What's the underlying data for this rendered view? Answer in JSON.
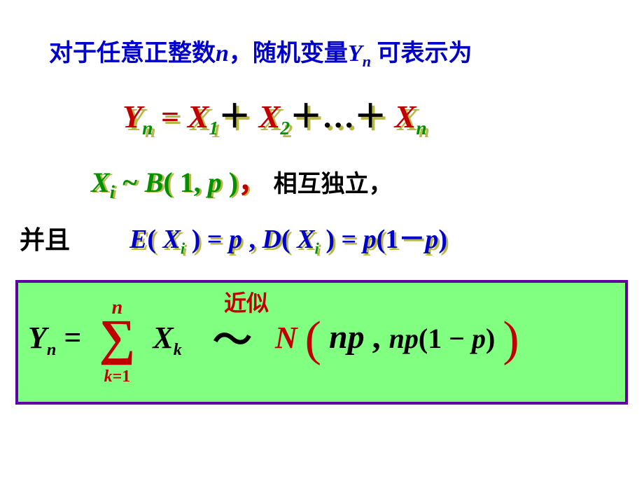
{
  "line1": {
    "pre": "对于任意正整数",
    "n": "n",
    "mid": "，随机变量",
    "Y": "Y",
    "Ysub": "n",
    "post": " 可表示为",
    "color": "#0000c8",
    "fontsize": 34
  },
  "eq1": {
    "Y": "Y",
    "Ysub": "n",
    "eq": " = ",
    "X": "X",
    "sub1": "1",
    "sub2": "2",
    "subn": "n",
    "plus": "＋",
    "dots": "…",
    "main_color": "#c00000",
    "sub_color": "#009000",
    "shadow_color": "#b8b848",
    "fontsize": 46
  },
  "line3": {
    "Xi": "X",
    "i": "i",
    "tilde": " ~ ",
    "B": "B",
    "open": "( ",
    "one": "1",
    "comma": ", ",
    "p": "p",
    "close": " )",
    "cn_comma": "，",
    "indep": " 相互独立，",
    "green": "#009000",
    "red": "#c00000",
    "shadow_color": "#b8b848",
    "fontsize": 40
  },
  "line4": {
    "bingqie": "并且",
    "E": "E",
    "open": "( ",
    "X": "X",
    "i": "i",
    "close": " )",
    "eq": " = ",
    "p": "p",
    "sep": "   , ",
    "D": "D",
    "p1mp": "p",
    "open2": "(",
    "one": "1",
    "minus": "－",
    "p2": "p",
    "close2": ")",
    "color": "#0000c8",
    "isub_color": "#009000",
    "shadow_color": "#b8b848",
    "fontsize": 38
  },
  "box": {
    "border_color": "#6000a0",
    "bg_color": "#80ff80",
    "jinsi": "近似",
    "jinsi_color": "#c00000",
    "Y": "Y",
    "Ysub": "n",
    "eq": " = ",
    "sigma_top": "n",
    "sigma_bottom_k": "k",
    "sigma_bottom_eq": "=",
    "sigma_bottom_1": "1",
    "X": "X",
    "Xsub": "k",
    "tilde": "～",
    "N": "N",
    "np": "np",
    "comma": " ,   ",
    "np2": "np",
    "open": "(",
    "one": "1",
    "minus": " − ",
    "p": "p",
    "close": ")",
    "red": "#c00000",
    "fontsize": 44
  }
}
